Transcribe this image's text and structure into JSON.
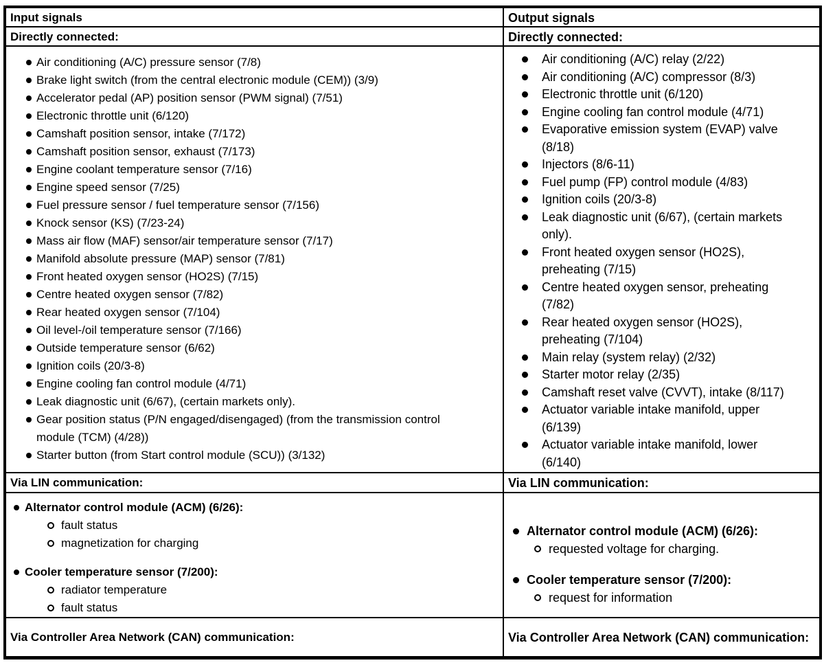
{
  "colors": {
    "text": "#000000",
    "border": "#000000",
    "background": "#ffffff"
  },
  "input": {
    "header": "Input signals",
    "directly_connected_title": "Directly connected:",
    "directly_connected": [
      "Air conditioning (A/C) pressure sensor (7/8)",
      "Brake light switch (from the central electronic module (CEM)) (3/9)",
      "Accelerator pedal (AP) position sensor (PWM signal) (7/51)",
      "Electronic throttle unit (6/120)",
      "Camshaft position sensor, intake (7/172)",
      "Camshaft position sensor, exhaust (7/173)",
      "Engine coolant temperature sensor (7/16)",
      "Engine speed sensor (7/25)",
      "Fuel pressure sensor / fuel temperature sensor (7/156)",
      "Knock sensor (KS) (7/23-24)",
      "Mass air flow (MAF) sensor/air temperature sensor (7/17)",
      "Manifold absolute pressure (MAP) sensor (7/81)",
      "Front heated oxygen sensor (HO2S) (7/15)",
      "Centre heated oxygen sensor (7/82)",
      "Rear heated oxygen sensor (7/104)",
      "Oil level-/oil temperature sensor (7/166)",
      "Outside temperature sensor (6/62)",
      "Ignition coils (20/3-8)",
      "Engine cooling fan control module (4/71)",
      "Leak diagnostic unit (6/67), (certain markets only).",
      "Gear position status (P/N engaged/disengaged) (from the transmission control module (TCM) (4/28))",
      "Starter button (from Start control module (SCU)) (3/132)"
    ],
    "lin_title": "Via LIN communication:",
    "lin_groups": [
      {
        "label": "Alternator control module (ACM) (6/26):",
        "subitems": [
          "fault status",
          "magnetization for charging"
        ]
      },
      {
        "label": "Cooler temperature sensor (7/200):",
        "subitems": [
          "radiator temperature",
          "fault status"
        ]
      }
    ],
    "can_title": "Via Controller Area Network (CAN) communication:"
  },
  "output": {
    "header": "Output signals",
    "directly_connected_title": "Directly connected:",
    "directly_connected": [
      "Air conditioning (A/C) relay (2/22)",
      "Air conditioning (A/C) compressor (8/3)",
      "Electronic throttle unit (6/120)",
      "Engine cooling fan control module (4/71)",
      "Evaporative emission system (EVAP) valve (8/18)",
      "Injectors (8/6-11)",
      "Fuel pump (FP) control module (4/83)",
      "Ignition coils (20/3-8)",
      "Leak diagnostic unit (6/67), (certain markets only).",
      "Front heated oxygen sensor (HO2S), preheating (7/15)",
      "Centre heated oxygen sensor, preheating (7/82)",
      "Rear heated oxygen sensor (HO2S), preheating (7/104)",
      "Main relay (system relay) (2/32)",
      "Starter motor relay (2/35)",
      "Camshaft reset valve (CVVT), intake (8/117)",
      "Actuator variable intake manifold, upper (6/139)",
      "Actuator variable intake manifold, lower (6/140)"
    ],
    "lin_title": "Via LIN communication:",
    "lin_groups": [
      {
        "label": "Alternator control module (ACM) (6/26):",
        "subitems": [
          "requested voltage for charging."
        ]
      },
      {
        "label": "Cooler temperature sensor (7/200):",
        "subitems": [
          "request for information"
        ]
      }
    ],
    "can_title": "Via Controller Area Network (CAN) communication:"
  }
}
